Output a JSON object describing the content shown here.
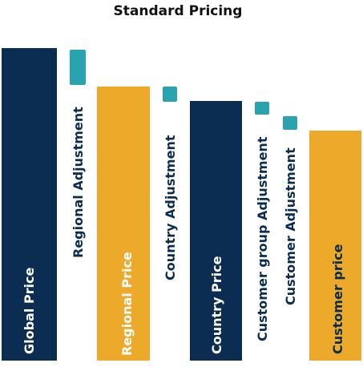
{
  "header": {
    "title": "Standard Pricing"
  },
  "steps": [
    {
      "label": "Global Price"
    },
    {
      "label": "Regional Adjustment"
    },
    {
      "label": "Regional Price"
    },
    {
      "label": "Country Adjustment"
    },
    {
      "label": "Country Price"
    },
    {
      "label": "Customer group Adjustment"
    },
    {
      "label": "Customer Adjustment"
    },
    {
      "label": "Customer price"
    }
  ]
}
